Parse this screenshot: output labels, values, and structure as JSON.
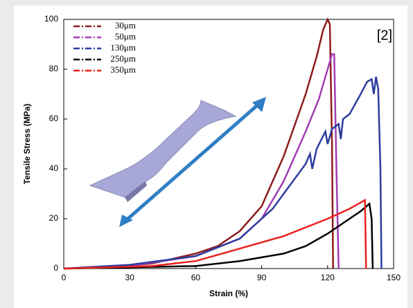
{
  "chart_data": {
    "type": "line",
    "x_label": "Strain (%)",
    "y_label": "Tensile Stress (MPa)",
    "annotation": "[2]",
    "xlim": [
      0,
      150
    ],
    "xticks": [
      0,
      30,
      60,
      90,
      120,
      150
    ],
    "ylim": [
      0,
      100
    ],
    "yticks": [
      0,
      20,
      40,
      60,
      80,
      100
    ],
    "legend": "upper-left",
    "series": [
      {
        "name": "30μm",
        "color": "#8b1c1c",
        "x": [
          0,
          20,
          40,
          60,
          70,
          80,
          90,
          100,
          110,
          115,
          118,
          120,
          121,
          122,
          122.5
        ],
        "values": [
          0,
          0.5,
          2,
          6,
          9,
          15,
          25,
          45,
          70,
          85,
          96,
          100,
          98,
          50,
          0
        ]
      },
      {
        "name": "50μm",
        "color": "#a23cb4",
        "x": [
          0,
          30,
          60,
          80,
          90,
          100,
          110,
          116,
          120,
          122,
          123,
          124,
          125
        ],
        "values": [
          0,
          1,
          5,
          12,
          20,
          35,
          55,
          68,
          80,
          86,
          86,
          40,
          0
        ]
      },
      {
        "name": "130μm",
        "color": "#2b3c9e",
        "x": [
          0,
          30,
          60,
          80,
          90,
          95,
          100,
          105,
          110,
          112,
          113,
          115,
          119,
          120,
          122,
          125,
          126,
          127,
          130,
          135,
          138,
          140,
          141,
          142,
          143,
          144,
          144.5
        ],
        "values": [
          0,
          1.5,
          5,
          12,
          20,
          24,
          30,
          36,
          42,
          46,
          40,
          48,
          55,
          50,
          56,
          58,
          52,
          60,
          62,
          70,
          75,
          76,
          70,
          77,
          72,
          40,
          0
        ]
      },
      {
        "name": "250μm",
        "color": "#000000",
        "x": [
          0,
          60,
          80,
          100,
          110,
          120,
          130,
          135,
          139,
          140,
          140.5
        ],
        "values": [
          0,
          1,
          3,
          6,
          9,
          14,
          20,
          23,
          26,
          20,
          0
        ]
      },
      {
        "name": "350μm",
        "color": "#e8201e",
        "x": [
          0,
          40,
          60,
          80,
          100,
          120,
          130,
          136,
          137,
          137.5
        ],
        "values": [
          0,
          1,
          3,
          8,
          13,
          20,
          24,
          27,
          27.5,
          0
        ]
      }
    ]
  }
}
